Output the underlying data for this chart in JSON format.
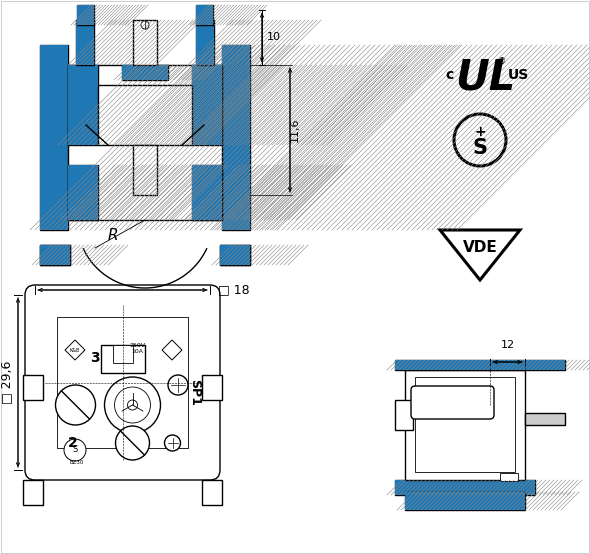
{
  "bg_color": "#ffffff",
  "lc": "#000000",
  "dim_10": "10",
  "dim_116": "11,6",
  "dim_18": "□ 18",
  "dim_296": "□ 29,6",
  "dim_12": "12",
  "dim_R": "R",
  "label_SP1": "SP1",
  "label_2": "2",
  "label_3": "3",
  "label_KnB": "K&B",
  "label_10A": "10A",
  "label_250V": "250V",
  "label_BZ30": "BZ30",
  "cert_c": "c",
  "cert_us": "US",
  "cert_vde": "VDE",
  "cert_S": "S",
  "cert_reg": "®"
}
